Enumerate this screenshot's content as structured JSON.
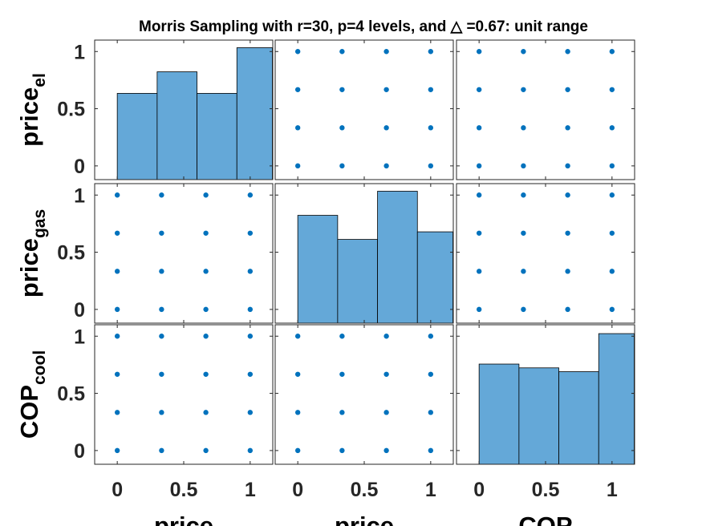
{
  "chart_data": {
    "type": "scatter-matrix",
    "title": "Morris Sampling with r=30, p=4 levels, and △ =0.67: unit range",
    "variables": [
      {
        "label": "price",
        "subscript": "el",
        "xlabel": "price"
      },
      {
        "label": "price",
        "subscript": "gas",
        "xlabel": "price"
      },
      {
        "label": "COP",
        "subscript": "cool",
        "xlabel": "COP"
      }
    ],
    "levels": [
      0,
      0.3333,
      0.6667,
      1
    ],
    "ticks": [
      0,
      0.5,
      1
    ],
    "tick_labels": [
      "0",
      "0.5",
      "1"
    ],
    "xlim": [
      -0.17,
      1.17
    ],
    "ylim": [
      -0.12,
      1.1
    ],
    "point_color": "#0072BD",
    "bar_color": "#64A8D8",
    "histograms": [
      {
        "bin_edges": [
          -0.167,
          0,
          0.3,
          0.6,
          0.9,
          1.167
        ],
        "heights": [
          0.0,
          0.68,
          0.85,
          0.68,
          1.04
        ]
      },
      {
        "bin_edges": [
          0.0,
          0.3,
          0.6,
          0.9,
          1.167
        ],
        "heights": [
          0.85,
          0.66,
          1.04,
          0.72
        ]
      },
      {
        "bin_edges": [
          0.0,
          0.3,
          0.6,
          0.9,
          1.167
        ],
        "heights": [
          0.79,
          0.76,
          0.73,
          1.03
        ]
      }
    ]
  }
}
